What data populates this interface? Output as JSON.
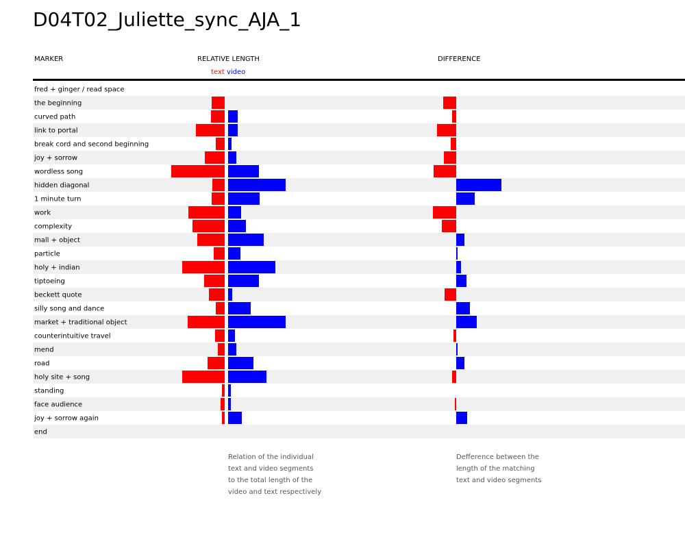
{
  "title": "D04T02_Juliette_sync_AJA_1",
  "headers": {
    "marker": "MARKER",
    "relative_length": "RELATIVE LENGTH",
    "difference": "DIFFERENCE"
  },
  "legend": {
    "text": "text",
    "video": "video"
  },
  "notes": {
    "relative": [
      "Relation of the individual",
      "text and video segments",
      "to the total length of the",
      "video and text respectively"
    ],
    "difference": [
      "Defference between the",
      "length of the matching",
      "text and video segments"
    ]
  },
  "colors": {
    "text": "#ff0000",
    "video": "#0000ff",
    "stripe": "#f0f0f0"
  },
  "chart_data": {
    "type": "bar",
    "categories": [
      "fred + ginger / read space",
      "the beginning",
      "curved path",
      "link to portal",
      "break cord and second beginning",
      "joy + sorrow",
      "wordless song",
      "hidden diagonal",
      "1 minute turn",
      "work",
      "complexity",
      "mall + object",
      "particle",
      "holy + indian",
      "tiptoeing",
      "beckett quote",
      "silly song and dance",
      "market + traditional object",
      "counterintuitive travel",
      "mend",
      "road",
      "holy site + song",
      "standing",
      "face audience",
      "joy + sorrow again",
      "end"
    ],
    "series": [
      {
        "name": "text",
        "values": [
          0,
          19,
          20,
          42,
          13,
          29,
          78,
          18,
          19,
          53,
          47,
          40,
          16,
          62,
          30,
          23,
          13,
          54,
          14,
          10,
          25,
          62,
          4,
          6,
          4,
          0
        ]
      },
      {
        "name": "video",
        "values": [
          0,
          0,
          14,
          14,
          5,
          12,
          45,
          84,
          46,
          19,
          26,
          52,
          18,
          69,
          45,
          6,
          33,
          84,
          10,
          12,
          37,
          56,
          4,
          4,
          20,
          0
        ]
      }
    ],
    "difference": [
      0,
      -19,
      -6,
      -28,
      -8,
      -18,
      -33,
      66,
      27,
      -34,
      -21,
      12,
      2,
      7,
      15,
      -17,
      20,
      30,
      -4,
      2,
      12,
      -6,
      0,
      -2,
      16,
      0
    ]
  }
}
